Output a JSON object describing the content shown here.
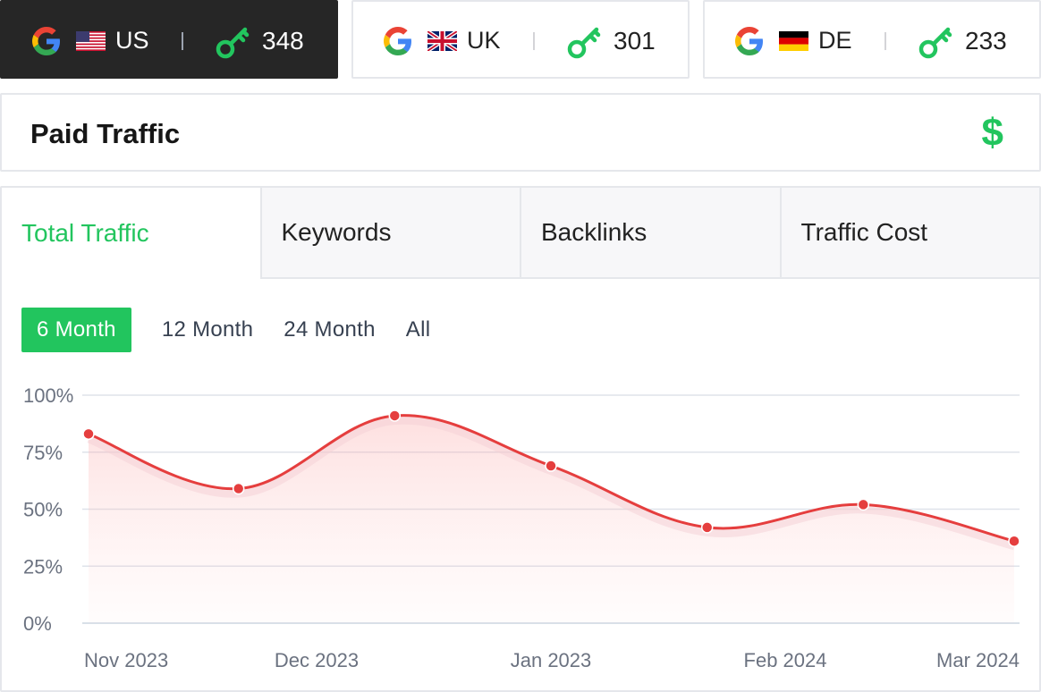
{
  "countries": [
    {
      "code": "US",
      "count": "348",
      "active": true
    },
    {
      "code": "UK",
      "count": "301",
      "active": false
    },
    {
      "code": "DE",
      "count": "233",
      "active": false
    }
  ],
  "icons": {
    "engine": "google-icon",
    "keyword": "key-icon",
    "paid": "dollar-icon"
  },
  "paid": {
    "title": "Paid Traffic",
    "icon": "$"
  },
  "tabs": [
    "Total Traffic",
    "Keywords",
    "Backlinks",
    "Traffic Cost"
  ],
  "ranges": [
    "6 Month",
    "12 Month",
    "24 Month",
    "All"
  ],
  "colors": {
    "accent": "#22c55e",
    "line": "#e53e3e",
    "dark": "#262626"
  },
  "chart_data": {
    "type": "line",
    "x": [
      "Nov 2023",
      "",
      "Dec 2023",
      "",
      "Jan 2023",
      "",
      "Feb 2024",
      "",
      "Mar 2024"
    ],
    "x_labels": [
      "Nov 2023",
      "Dec 2023",
      "Jan 2023",
      "Feb 2024",
      "Mar 2024"
    ],
    "points": [
      83,
      59,
      91,
      69,
      42,
      52,
      36
    ],
    "point_positions": [
      0.0,
      0.1667,
      0.3333,
      0.5,
      0.6667,
      0.8333,
      1.0
    ],
    "y_ticks": [
      "100%",
      "75%",
      "50%",
      "25%",
      "0%"
    ],
    "ylim": [
      0,
      100
    ],
    "grid": true
  }
}
